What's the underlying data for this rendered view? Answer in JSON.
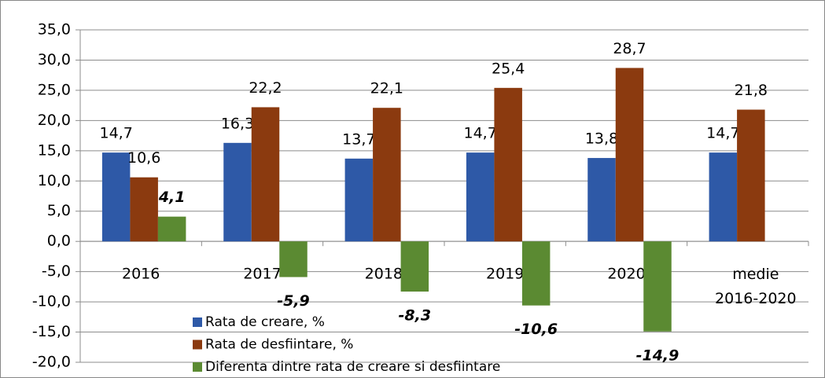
{
  "chart_data": {
    "type": "bar",
    "categories": [
      "2016",
      "2017",
      "2018",
      "2019",
      "2020",
      "medie 2016-2020"
    ],
    "series": [
      {
        "name": "Rata de creare, %",
        "color": "#2e59a7",
        "values": [
          14.7,
          16.3,
          13.7,
          14.7,
          13.8,
          14.7
        ],
        "value_labels": [
          "14,7",
          "16,3",
          "13,7",
          "14,7",
          "13,8",
          "14,7"
        ]
      },
      {
        "name": "Rata de desfiintare, %",
        "color": "#8b3a0f",
        "values": [
          10.6,
          22.2,
          22.1,
          25.4,
          28.7,
          21.8
        ],
        "value_labels": [
          "10,6",
          "22,2",
          "22,1",
          "25,4",
          "28,7",
          "21,8"
        ]
      },
      {
        "name": "Diferenta dintre rata de creare si desfiintare",
        "color": "#5b8a32",
        "values": [
          4.1,
          -5.9,
          -8.3,
          -10.6,
          -14.9,
          null
        ],
        "value_labels": [
          "4,1",
          "-5,9",
          "-8,3",
          "-10,6",
          "-14,9",
          null
        ]
      }
    ],
    "ylim": [
      -20,
      35
    ],
    "yticks": [
      {
        "value": -20,
        "label": "-20,0"
      },
      {
        "value": -15,
        "label": "-15,0"
      },
      {
        "value": -10,
        "label": "-10,0"
      },
      {
        "value": -5,
        "label": "-5,0"
      },
      {
        "value": 0,
        "label": "0,0"
      },
      {
        "value": 5,
        "label": "5,0"
      },
      {
        "value": 10,
        "label": "10,0"
      },
      {
        "value": 15,
        "label": "15,0"
      },
      {
        "value": 20,
        "label": "20,0"
      },
      {
        "value": 25,
        "label": "25,0"
      },
      {
        "value": 30,
        "label": "30,0"
      },
      {
        "value": 35,
        "label": "35,0"
      }
    ],
    "grid": true
  }
}
